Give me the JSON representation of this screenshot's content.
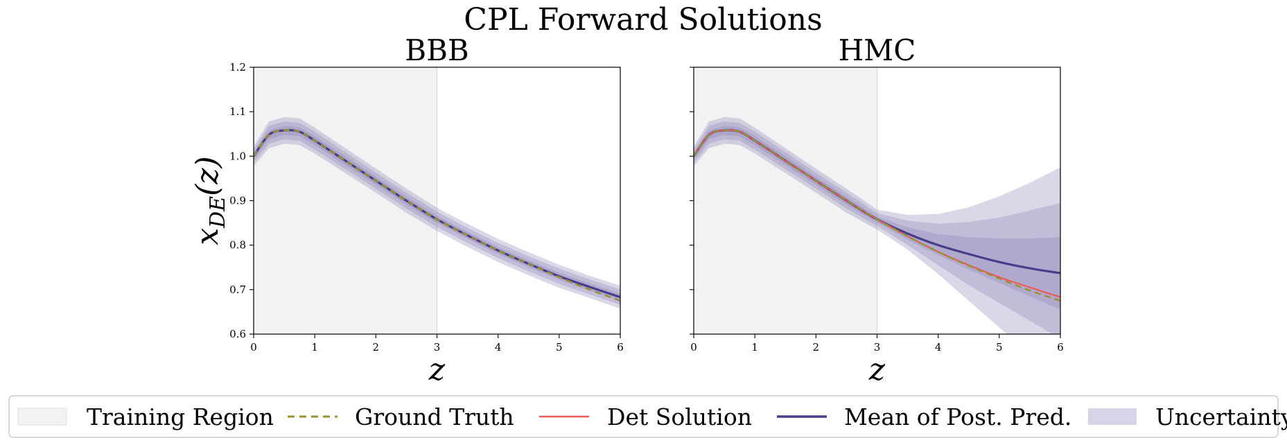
{
  "figure": {
    "suptitle": "CPL Forward Solutions"
  },
  "chart_data": [
    {
      "type": "line",
      "panel": "BBB",
      "title": "BBB",
      "xlabel": "z",
      "ylabel": "x_DE(z)",
      "xlim": [
        0,
        6
      ],
      "ylim": [
        0.6,
        1.2
      ],
      "x_ticks": [
        "0",
        "1",
        "2",
        "3",
        "4",
        "5",
        "6"
      ],
      "y_ticks": [
        "0.6",
        "0.7",
        "0.8",
        "0.9",
        "1.0",
        "1.1",
        "1.2"
      ],
      "show_y_tick_labels": true,
      "training_region": [
        0,
        3
      ],
      "x": [
        0,
        0.25,
        0.5,
        0.75,
        1,
        1.5,
        2,
        2.5,
        3,
        3.5,
        4,
        4.5,
        5,
        5.5,
        6
      ],
      "series": [
        {
          "name": "Mean of Post. Pred.",
          "values": [
            1.0,
            1.048,
            1.058,
            1.055,
            1.035,
            0.99,
            0.945,
            0.9,
            0.858,
            0.822,
            0.788,
            0.758,
            0.73,
            0.706,
            0.683
          ]
        },
        {
          "name": "Ground Truth",
          "values": [
            1.0,
            1.048,
            1.058,
            1.055,
            1.035,
            0.99,
            0.945,
            0.9,
            0.858,
            0.822,
            0.788,
            0.758,
            0.728,
            0.7,
            0.675
          ]
        }
      ],
      "bands": [
        {
          "level": 3,
          "lower": [
            0.978,
            1.018,
            1.028,
            1.025,
            1.006,
            0.962,
            0.918,
            0.873,
            0.832,
            0.796,
            0.762,
            0.732,
            0.704,
            0.681,
            0.657
          ],
          "upper": [
            1.022,
            1.078,
            1.088,
            1.085,
            1.064,
            1.018,
            0.972,
            0.927,
            0.884,
            0.848,
            0.814,
            0.784,
            0.756,
            0.731,
            0.709
          ]
        },
        {
          "level": 2,
          "lower": [
            0.986,
            1.028,
            1.038,
            1.035,
            1.015,
            0.971,
            0.927,
            0.882,
            0.841,
            0.805,
            0.771,
            0.741,
            0.713,
            0.689,
            0.666
          ],
          "upper": [
            1.014,
            1.068,
            1.078,
            1.075,
            1.055,
            1.009,
            0.963,
            0.918,
            0.875,
            0.839,
            0.805,
            0.775,
            0.747,
            0.723,
            0.7
          ]
        },
        {
          "level": 1,
          "lower": [
            0.993,
            1.038,
            1.048,
            1.045,
            1.025,
            0.98,
            0.936,
            0.891,
            0.85,
            0.814,
            0.78,
            0.75,
            0.722,
            0.698,
            0.675
          ],
          "upper": [
            1.007,
            1.058,
            1.068,
            1.065,
            1.045,
            1.0,
            0.954,
            0.909,
            0.866,
            0.83,
            0.796,
            0.766,
            0.738,
            0.714,
            0.691
          ]
        }
      ]
    },
    {
      "type": "line",
      "panel": "HMC",
      "title": "HMC",
      "xlabel": "z",
      "ylabel": "",
      "xlim": [
        0,
        6
      ],
      "ylim": [
        0.6,
        1.2
      ],
      "x_ticks": [
        "0",
        "1",
        "2",
        "3",
        "4",
        "5",
        "6"
      ],
      "y_ticks": [
        "0.6",
        "0.7",
        "0.8",
        "0.9",
        "1.0",
        "1.1",
        "1.2"
      ],
      "show_y_tick_labels": false,
      "training_region": [
        0,
        3
      ],
      "x": [
        0,
        0.25,
        0.5,
        0.75,
        1,
        1.5,
        2,
        2.5,
        3,
        3.5,
        4,
        4.5,
        5,
        5.5,
        6
      ],
      "series": [
        {
          "name": "Mean of Post. Pred.",
          "values": [
            1.0,
            1.048,
            1.058,
            1.055,
            1.035,
            0.99,
            0.945,
            0.9,
            0.858,
            0.826,
            0.8,
            0.78,
            0.762,
            0.748,
            0.737
          ]
        },
        {
          "name": "Det Solution",
          "values": [
            1.0,
            1.048,
            1.058,
            1.055,
            1.035,
            0.99,
            0.945,
            0.9,
            0.858,
            0.82,
            0.785,
            0.755,
            0.728,
            0.705,
            0.683
          ]
        },
        {
          "name": "Ground Truth",
          "values": [
            1.0,
            1.048,
            1.058,
            1.055,
            1.035,
            0.99,
            0.945,
            0.9,
            0.858,
            0.82,
            0.785,
            0.754,
            0.725,
            0.698,
            0.675
          ]
        }
      ],
      "bands": [
        {
          "level": 3,
          "lower": [
            0.978,
            1.018,
            1.028,
            1.025,
            1.006,
            0.962,
            0.918,
            0.873,
            0.835,
            0.79,
            0.735,
            0.675,
            0.615,
            0.555,
            0.5
          ],
          "upper": [
            1.022,
            1.078,
            1.088,
            1.085,
            1.064,
            1.018,
            0.972,
            0.927,
            0.88,
            0.868,
            0.87,
            0.885,
            0.91,
            0.94,
            0.975
          ]
        },
        {
          "level": 2,
          "lower": [
            0.986,
            1.028,
            1.038,
            1.035,
            1.015,
            0.971,
            0.927,
            0.882,
            0.843,
            0.8,
            0.755,
            0.71,
            0.67,
            0.63,
            0.59
          ],
          "upper": [
            1.014,
            1.068,
            1.078,
            1.075,
            1.055,
            1.009,
            0.963,
            0.918,
            0.872,
            0.855,
            0.848,
            0.852,
            0.862,
            0.878,
            0.895
          ]
        },
        {
          "level": 1,
          "lower": [
            0.993,
            1.038,
            1.048,
            1.045,
            1.025,
            0.98,
            0.936,
            0.891,
            0.851,
            0.812,
            0.778,
            0.745,
            0.715,
            0.685,
            0.655
          ],
          "upper": [
            1.007,
            1.058,
            1.068,
            1.065,
            1.045,
            1.0,
            0.954,
            0.909,
            0.864,
            0.84,
            0.825,
            0.818,
            0.815,
            0.815,
            0.818
          ]
        }
      ]
    }
  ],
  "legend": {
    "placement": "bottom",
    "items": [
      {
        "label": "Training Region",
        "kind": "patch-training"
      },
      {
        "label": "Ground Truth",
        "kind": "line-dashed"
      },
      {
        "label": "Det Solution",
        "kind": "line-red"
      },
      {
        "label": "Mean of Post. Pred.",
        "kind": "line-mean"
      },
      {
        "label": "Uncertainty",
        "kind": "patch-uncertainty"
      }
    ]
  },
  "colors": {
    "mean": "#483d8b",
    "ground_truth": "#9a9232",
    "det_solution": "#f05656",
    "band": "#8c84b9",
    "training_region": "#f2f2f2",
    "training_edge": "#dddddd",
    "axis": "#111111",
    "legend_border": "#cccccc"
  },
  "icons": {
    "legend_training": "training-region-swatch",
    "legend_uncertainty": "uncertainty-swatch"
  }
}
